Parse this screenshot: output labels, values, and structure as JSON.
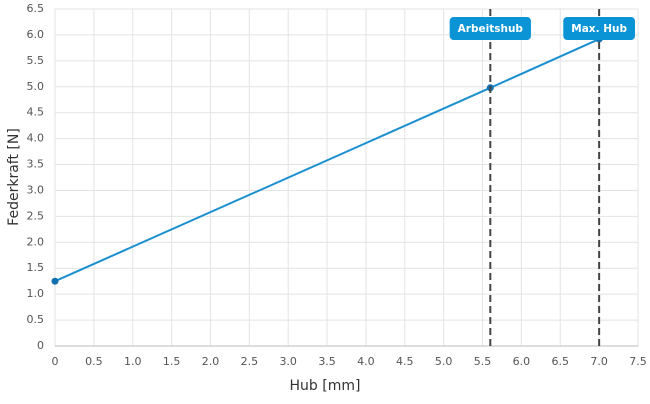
{
  "chart_data": {
    "type": "line",
    "x_label": "Hub [mm]",
    "y_label": "Federkraft [N]",
    "series": [
      {
        "color": "#1a8fd0",
        "marker_color": "#1170ad",
        "x": [
          0,
          5.6,
          7.0
        ],
        "values": [
          1.25,
          4.98,
          5.92
        ]
      }
    ],
    "xlim": [
      0,
      7.5
    ],
    "xticks": [
      0,
      0.5,
      {
        "value": 1,
        "label": "1.0"
      },
      1.5,
      {
        "value": 2,
        "label": "2.0"
      },
      2.5,
      {
        "value": 3,
        "label": "3.0"
      },
      3.5,
      {
        "value": 4,
        "label": "4.0"
      },
      4.5,
      {
        "value": 5,
        "label": "5.0"
      },
      5.5,
      {
        "value": 6,
        "label": "6.0"
      },
      6.5,
      {
        "value": 7,
        "label": "7.0"
      },
      7.5
    ],
    "ylim": [
      0,
      6.5
    ],
    "yticks": [
      0,
      0.5,
      {
        "value": 1,
        "label": "1.0"
      },
      1.5,
      {
        "value": 2,
        "label": "2.0"
      },
      2.5,
      {
        "value": 3,
        "label": "3.0"
      },
      3.5,
      {
        "value": 4,
        "label": "4.0"
      },
      4.5,
      {
        "value": 5,
        "label": "5.0"
      },
      5.5,
      {
        "value": 6,
        "label": "6.0"
      },
      6.5
    ],
    "grid": true,
    "annotations": [
      {
        "x": 5.6,
        "label": "Arbeitshub"
      },
      {
        "x": 7.0,
        "label": "Max. Hub"
      }
    ]
  }
}
